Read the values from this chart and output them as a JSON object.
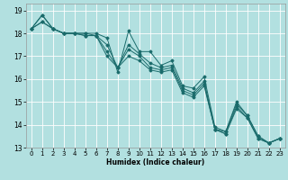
{
  "xlabel": "Humidex (Indice chaleur)",
  "bg_color": "#b2e0e0",
  "grid_color": "#ffffff",
  "line_color": "#1a6b6b",
  "xlim": [
    -0.5,
    23.5
  ],
  "ylim": [
    13.0,
    19.3
  ],
  "yticks": [
    13,
    14,
    15,
    16,
    17,
    18,
    19
  ],
  "xticks": [
    0,
    1,
    2,
    3,
    4,
    5,
    6,
    7,
    8,
    9,
    10,
    11,
    12,
    13,
    14,
    15,
    16,
    17,
    18,
    19,
    20,
    21,
    22,
    23
  ],
  "series": [
    [
      18.2,
      18.8,
      18.2,
      18.0,
      18.0,
      18.0,
      18.0,
      17.8,
      16.3,
      18.1,
      17.2,
      17.2,
      16.6,
      16.8,
      15.7,
      15.6,
      16.1,
      13.9,
      13.7,
      15.0,
      14.4,
      13.5,
      13.2,
      13.4
    ],
    [
      18.2,
      18.8,
      18.2,
      18.0,
      18.0,
      18.0,
      17.9,
      17.5,
      16.5,
      17.5,
      17.1,
      16.7,
      16.5,
      16.6,
      15.6,
      15.4,
      15.9,
      13.8,
      13.7,
      14.9,
      14.4,
      13.5,
      13.2,
      13.4
    ],
    [
      18.2,
      18.5,
      18.2,
      18.0,
      18.0,
      17.9,
      17.9,
      17.2,
      16.5,
      17.3,
      17.0,
      16.5,
      16.4,
      16.5,
      15.5,
      15.3,
      15.8,
      13.8,
      13.6,
      14.8,
      14.3,
      13.4,
      13.2,
      13.4
    ],
    [
      18.2,
      18.5,
      18.2,
      18.0,
      18.0,
      17.9,
      17.9,
      17.0,
      16.5,
      17.0,
      16.8,
      16.4,
      16.3,
      16.4,
      15.4,
      15.2,
      15.7,
      13.8,
      13.6,
      14.7,
      14.3,
      13.4,
      13.2,
      13.4
    ]
  ]
}
